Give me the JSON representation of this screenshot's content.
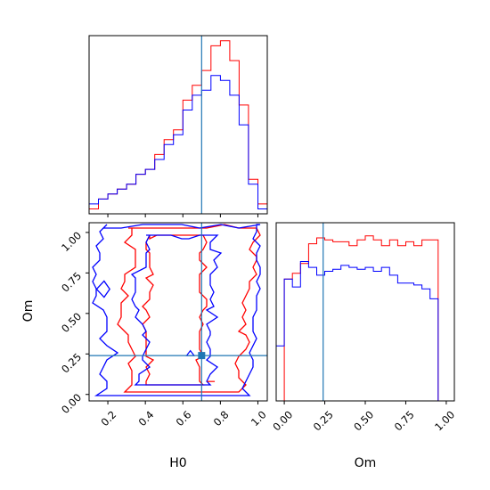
{
  "chart_data": {
    "type": "corner",
    "parameters": [
      "H0",
      "Om"
    ],
    "truth": {
      "H0": 0.7,
      "Om": 0.24
    },
    "colors": {
      "red_sample": "#ff0000",
      "blue_sample": "#0000ff",
      "truth": "#1f77b4"
    },
    "hist_H0": {
      "xlim": [
        0.1,
        1.05
      ],
      "bins": [
        0.05,
        0.1,
        0.15,
        0.2,
        0.25,
        0.3,
        0.35,
        0.4,
        0.45,
        0.5,
        0.55,
        0.6,
        0.65,
        0.7,
        0.75,
        0.8,
        0.85,
        0.9,
        0.95,
        1.0,
        1.05
      ],
      "red_counts": [
        0,
        1,
        3,
        4,
        5,
        6,
        8,
        9,
        12,
        15,
        17,
        23,
        26,
        29,
        34,
        35,
        31,
        22,
        7,
        2
      ],
      "blue_counts": [
        1,
        2,
        3,
        4,
        5,
        6,
        8,
        9,
        11,
        14,
        16,
        21,
        24,
        25,
        28,
        27,
        24,
        18,
        6,
        1
      ]
    },
    "hist_Om": {
      "xlim": [
        -0.05,
        1.05
      ],
      "xticks": [
        "0.00",
        "0.25",
        "0.50",
        "0.75",
        "1.00"
      ],
      "bins": [
        -0.05,
        0.0,
        0.05,
        0.1,
        0.15,
        0.2,
        0.25,
        0.3,
        0.35,
        0.4,
        0.45,
        0.5,
        0.55,
        0.6,
        0.65,
        0.7,
        0.75,
        0.8,
        0.85,
        0.9,
        0.95,
        1.0,
        1.05
      ],
      "red_counts": [
        0,
        62,
        65,
        70,
        80,
        83,
        82,
        81,
        81,
        79,
        82,
        84,
        82,
        79,
        82,
        79,
        81,
        79,
        82,
        82,
        0,
        0
      ],
      "blue_counts": [
        28,
        62,
        58,
        71,
        68,
        64,
        66,
        67,
        69,
        68,
        67,
        68,
        66,
        68,
        64,
        60,
        60,
        59,
        57,
        52,
        0,
        0
      ]
    },
    "contour_2d": {
      "xlabel": "H0",
      "ylabel": "Om",
      "xlim": [
        0.1,
        1.05
      ],
      "ylim": [
        -0.04,
        1.06
      ],
      "xticks": [
        "0.2",
        "0.4",
        "0.6",
        "0.8",
        "1.0"
      ],
      "yticks": [
        "0.00",
        "0.25",
        "0.50",
        "0.75",
        "1.00"
      ]
    }
  }
}
